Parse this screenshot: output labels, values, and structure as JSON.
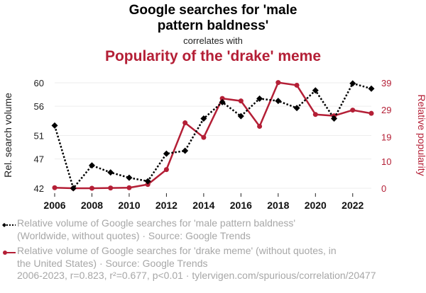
{
  "header": {
    "title1": "Google searches for 'male pattern baldness'",
    "correlates": "correlates with",
    "title2": "Popularity of the 'drake' meme"
  },
  "colors": {
    "series1": "#000000",
    "series2": "#b41f36",
    "grid": "#eeeeee",
    "muted": "#a7a7a7"
  },
  "chart_data": {
    "type": "line",
    "x": [
      2006,
      2007,
      2008,
      2009,
      2010,
      2011,
      2012,
      2013,
      2014,
      2015,
      2016,
      2017,
      2018,
      2019,
      2020,
      2021,
      2022,
      2023
    ],
    "xticks": [
      "2006",
      "2008",
      "2010",
      "2012",
      "2014",
      "2016",
      "2018",
      "2020",
      "2022"
    ],
    "y_left": {
      "label": "Rel. search volume",
      "ticks": [
        "42",
        "47",
        "51",
        "56",
        "60"
      ],
      "range": [
        42,
        60
      ]
    },
    "y_right": {
      "label": "Relative popularity",
      "ticks": [
        "0",
        "10",
        "19",
        "29",
        "39"
      ],
      "range": [
        0,
        39
      ]
    },
    "series": [
      {
        "name": "Relative volume of Google searches for 'male pattern baldness' (Worldwide, without quotes) · Source: Google Trends",
        "axis": "left",
        "style": "dotted",
        "marker": "diamond",
        "values": [
          52.7,
          42.0,
          45.9,
          44.7,
          43.8,
          43.2,
          47.9,
          48.4,
          53.9,
          56.7,
          54.3,
          57.3,
          56.9,
          55.7,
          58.7,
          53.9,
          59.9,
          59.0
        ]
      },
      {
        "name": "Relative volume of Google searches for 'drake meme' (without quotes, in the United States) · Source: Google Trends",
        "axis": "right",
        "style": "solid",
        "marker": "circle",
        "values": [
          0.2,
          0,
          0,
          0.1,
          0.2,
          1.4,
          6.9,
          24.2,
          18.8,
          33.2,
          32.3,
          22.9,
          39.1,
          38.1,
          27.3,
          26.8,
          28.9,
          27.7
        ]
      }
    ]
  },
  "legend": {
    "series1_line1": "Relative volume of Google searches for 'male pattern baldness'",
    "series1_line2": "(Worldwide, without quotes) · Source: Google Trends",
    "series2_line1": "Relative volume of Google searches for 'drake meme' (without quotes, in",
    "series2_line2": "the United States) · Source: Google Trends"
  },
  "footer": "2006-2023, r=0.823, r²=0.677, p<0.01 · tylervigen.com/spurious/correlation/20477"
}
